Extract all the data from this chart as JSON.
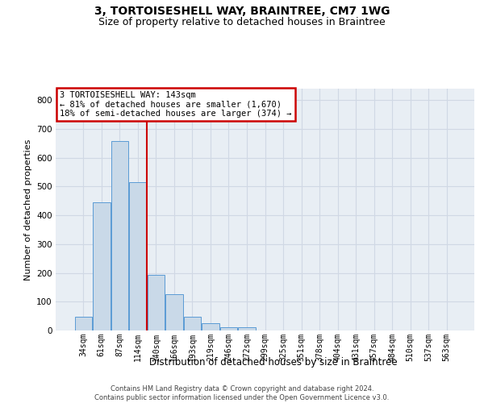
{
  "title": "3, TORTOISESHELL WAY, BRAINTREE, CM7 1WG",
  "subtitle": "Size of property relative to detached houses in Braintree",
  "xlabel": "Distribution of detached houses by size in Braintree",
  "ylabel": "Number of detached properties",
  "bar_labels": [
    "34sqm",
    "61sqm",
    "87sqm",
    "114sqm",
    "140sqm",
    "166sqm",
    "193sqm",
    "219sqm",
    "246sqm",
    "272sqm",
    "299sqm",
    "325sqm",
    "351sqm",
    "378sqm",
    "404sqm",
    "431sqm",
    "457sqm",
    "484sqm",
    "510sqm",
    "537sqm",
    "563sqm"
  ],
  "bar_values": [
    47,
    444,
    657,
    515,
    193,
    125,
    47,
    25,
    12,
    10,
    0,
    0,
    0,
    0,
    0,
    0,
    0,
    0,
    0,
    0,
    0
  ],
  "bar_color": "#c9d9e8",
  "bar_edgecolor": "#5b9bd5",
  "vline_x": 3.5,
  "vline_color": "#cc0000",
  "annotation_line1": "3 TORTOISESHELL WAY: 143sqm",
  "annotation_line2": "← 81% of detached houses are smaller (1,670)",
  "annotation_line3": "18% of semi-detached houses are larger (374) →",
  "annotation_box_color": "#cc0000",
  "ylim": [
    0,
    840
  ],
  "yticks": [
    0,
    100,
    200,
    300,
    400,
    500,
    600,
    700,
    800
  ],
  "background_color": "#e8eef4",
  "grid_color": "#d0d8e4",
  "footer_line1": "Contains HM Land Registry data © Crown copyright and database right 2024.",
  "footer_line2": "Contains public sector information licensed under the Open Government Licence v3.0.",
  "title_fontsize": 10,
  "subtitle_fontsize": 9,
  "ylabel_fontsize": 8,
  "xlabel_fontsize": 8.5
}
